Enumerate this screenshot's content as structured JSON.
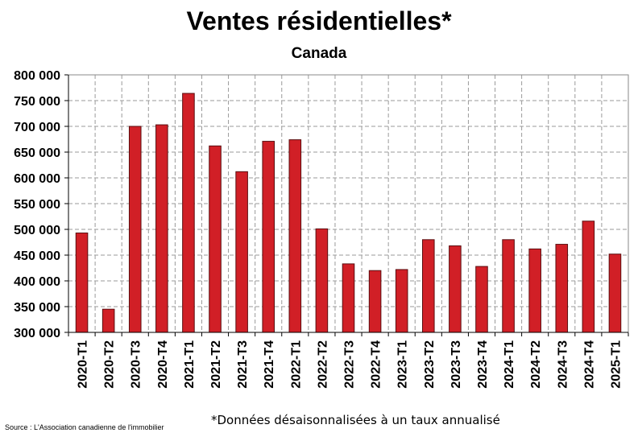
{
  "title": "Ventes résidentielles*",
  "subtitle": "Canada",
  "note": "*Données désaisonnalisées à un taux annualisé",
  "source": "Source : L'Association canadienne de l'immobilier",
  "chart_data": {
    "type": "bar",
    "title": "Ventes résidentielles*",
    "subtitle": "Canada",
    "categories": [
      "2020-T1",
      "2020-T2",
      "2020-T3",
      "2020-T4",
      "2021-T1",
      "2021-T2",
      "2021-T3",
      "2021-T4",
      "2022-T1",
      "2022-T2",
      "2022-T3",
      "2022-T4",
      "2023-T1",
      "2023-T2",
      "2023-T3",
      "2023-T4",
      "2024-T1",
      "2024-T2",
      "2024-T3",
      "2024-T4",
      "2025-T1"
    ],
    "values": [
      493000,
      345000,
      700000,
      703000,
      764000,
      662000,
      612000,
      671000,
      674000,
      501000,
      433000,
      420000,
      422000,
      480000,
      468000,
      428000,
      480000,
      462000,
      471000,
      516000,
      452000
    ],
    "ylim": [
      300000,
      800000
    ],
    "yticks": [
      "300 000",
      "350 000",
      "400 000",
      "450 000",
      "500 000",
      "550 000",
      "600 000",
      "650 000",
      "700 000",
      "750 000",
      "800 000"
    ],
    "xlabel": "",
    "ylabel": "",
    "bar_color": "#d11f26",
    "grid": true,
    "legend": "none"
  }
}
